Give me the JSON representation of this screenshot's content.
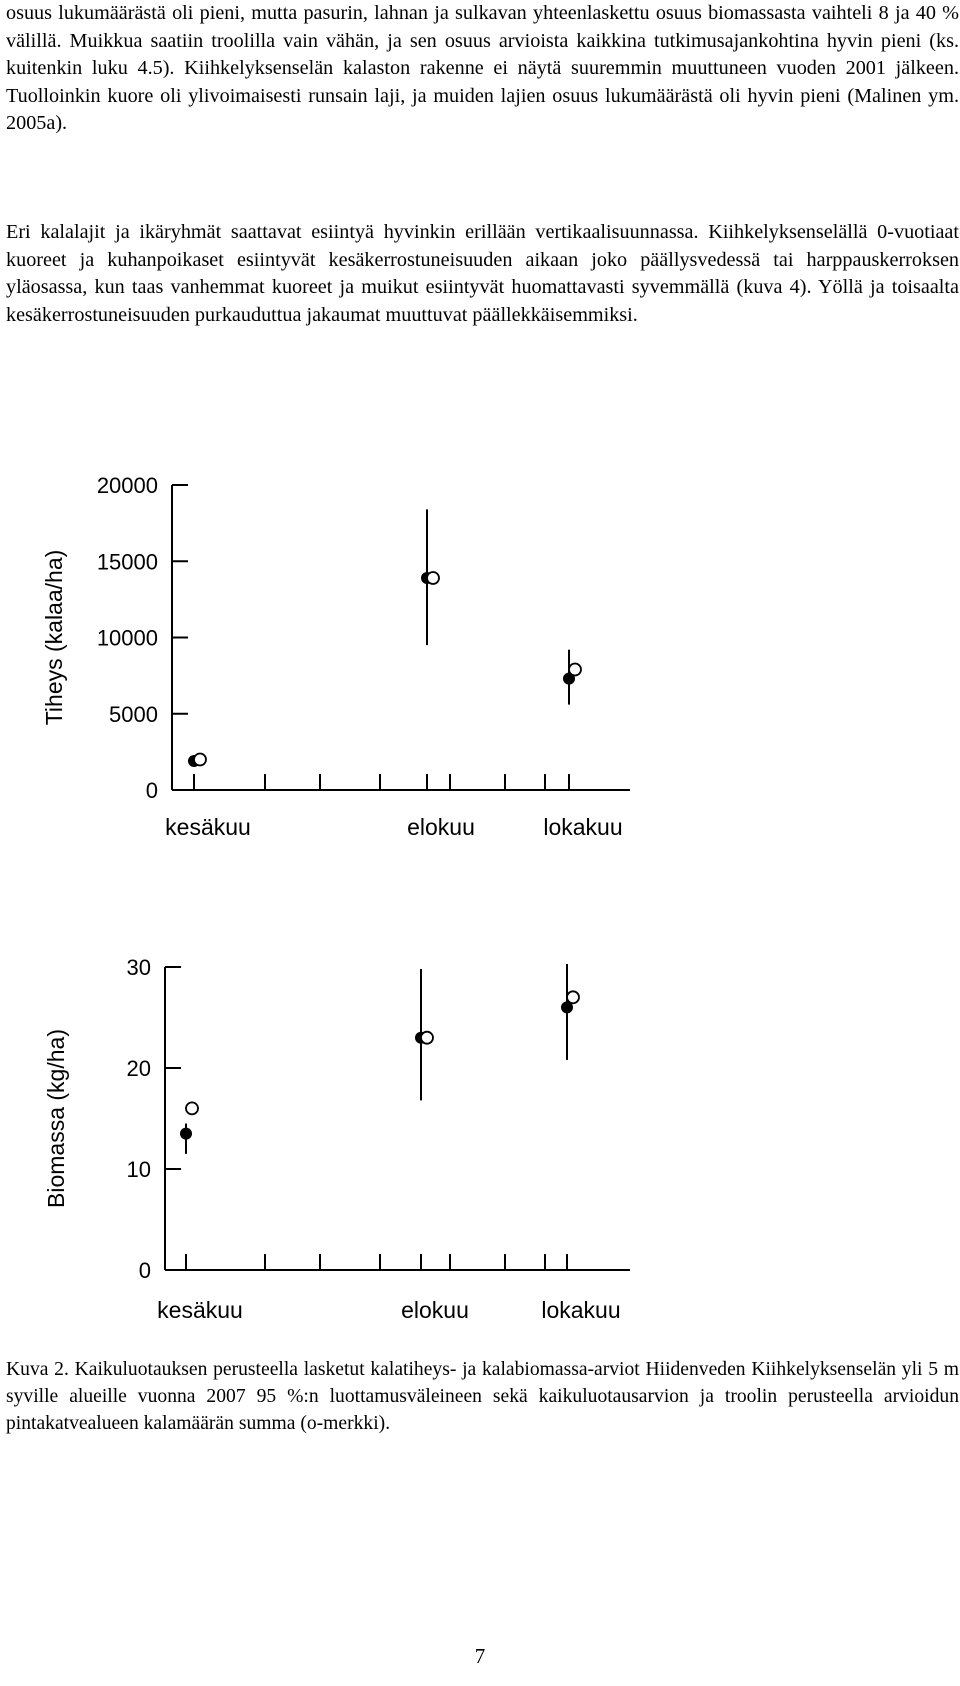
{
  "paragraphs": [
    "osuus lukumäärästä oli pieni, mutta pasurin, lahnan ja sulkavan yhteenlaskettu osuus biomassasta vaihteli 8 ja 40 % välillä. Muikkua saatiin troolilla vain vähän, ja sen osuus arvioista kaikkina tutkimusajankohtina hyvin pieni (ks. kuitenkin luku 4.5). Kiihkelyksenselän kalaston rakenne ei näytä suuremmin muuttuneen vuoden 2001 jälkeen. Tuolloinkin kuore oli ylivoimaisesti runsain laji, ja muiden lajien osuus lukumäärästä oli hyvin pieni (Malinen ym. 2005a).",
    "Eri kalalajit ja ikäryhmät saattavat esiintyä hyvinkin erillään vertikaalisuunnassa. Kiihkelyksenselällä 0-vuotiaat kuoreet ja kuhanpoikaset esiintyvät kesäkerrostuneisuuden aikaan joko päällysvedessä tai harppauskerroksen yläosassa, kun taas vanhemmat kuoreet ja muikut esiintyvät huomattavasti syvemmällä (kuva 4). Yöllä ja toisaalta kesäkerrostuneisuuden purkauduttua jakaumat muuttuvat päällekkäisemmiksi."
  ],
  "chart_data": [
    {
      "type": "scatter",
      "ylabel": "Tiheys (kalaa/ha)",
      "xlabel": "",
      "categories": [
        "kesäkuu",
        "elokuu",
        "lokakuu"
      ],
      "yticks": [
        0,
        5000,
        10000,
        15000,
        20000
      ],
      "ylim": [
        0,
        20000
      ],
      "grid": false,
      "series": [
        {
          "marker": "filled",
          "values": [
            1900,
            13900,
            7300
          ],
          "ci_low": [
            1600,
            9500,
            5600
          ],
          "ci_high": [
            2100,
            18400,
            9200
          ]
        },
        {
          "marker": "open",
          "values": [
            2000,
            13900,
            7900
          ]
        }
      ]
    },
    {
      "type": "scatter",
      "ylabel": "Biomassa (kg/ha)",
      "xlabel": "",
      "categories": [
        "kesäkuu",
        "elokuu",
        "lokakuu"
      ],
      "yticks": [
        0,
        10,
        20,
        30
      ],
      "ylim": [
        0,
        30
      ],
      "grid": false,
      "series": [
        {
          "marker": "filled",
          "values": [
            13.5,
            23,
            26
          ],
          "ci_low": [
            11.5,
            16.8,
            20.8
          ],
          "ci_high": [
            14.5,
            29.8,
            30.3
          ]
        },
        {
          "marker": "open",
          "values": [
            16,
            23,
            27
          ]
        }
      ]
    }
  ],
  "caption": "Kuva 2. Kaikuluotauksen perusteella lasketut kalatiheys- ja kalabiomassa-arviot Hiidenveden Kiihkelyksenselän yli 5 m syville alueille vuonna 2007 95 %:n luottamusväleineen sekä kaikuluotausarvion ja troolin perusteella arvioidun pintakatvealueen kalamäärän summa (o-merkki).",
  "page_number": "7"
}
